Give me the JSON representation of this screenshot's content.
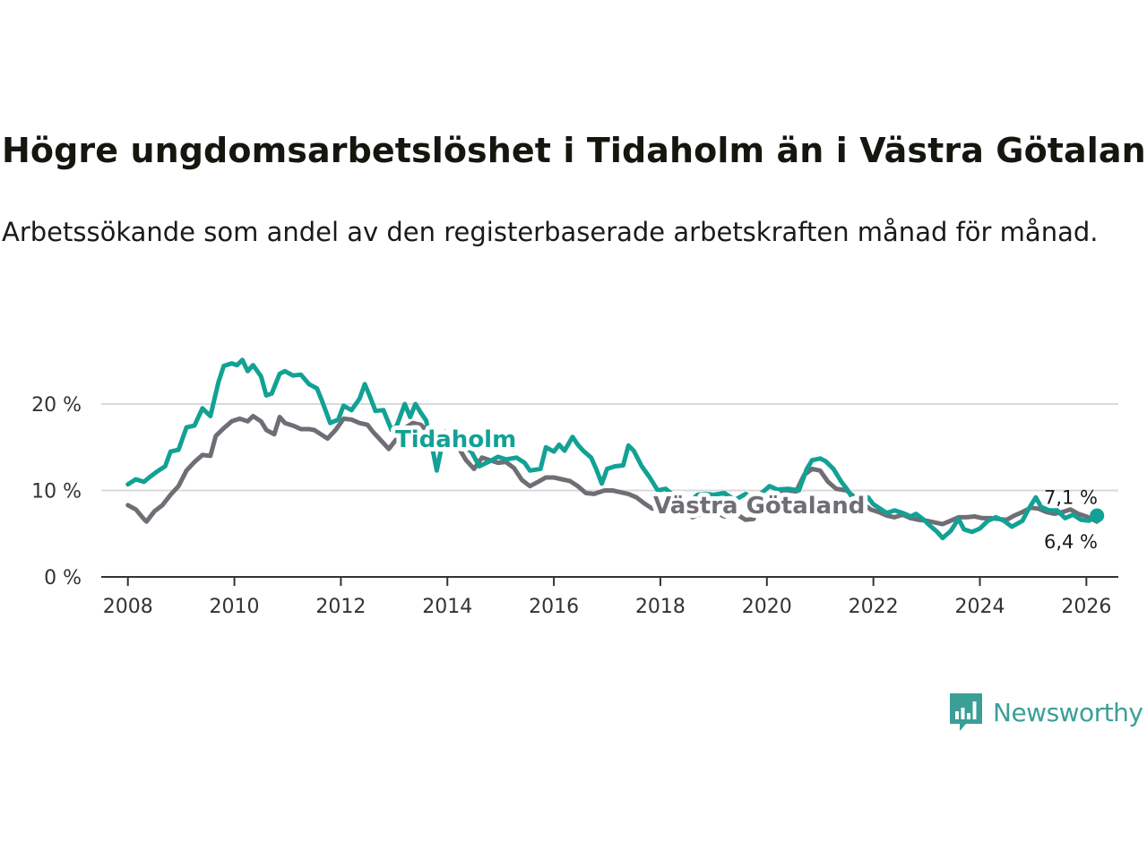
{
  "title": "Högre ungdomsarbetslöshet i Tidaholm än i Västra Götaland",
  "subtitle": "Arbetssökande som andel av den registerbaserade arbetskraften månad för månad.",
  "brand": {
    "name": "Newsworthy",
    "logo_icon": "bar-chart-speech-bubble-icon",
    "color": "#3a9f97"
  },
  "colors": {
    "tidaholm": "#12a195",
    "vastra_gotaland": "#6f6e74",
    "grid": "#d9d9d9",
    "axis": "#333333"
  },
  "chart_data": {
    "type": "line",
    "title": "Högre ungdomsarbetslöshet i Tidaholm än i Västra Götaland",
    "xlabel": "",
    "ylabel": "",
    "x_range": [
      2007.5,
      2026.6
    ],
    "ylim": [
      0,
      20
    ],
    "y_ticks": [
      0,
      10,
      20
    ],
    "y_tick_labels": [
      "0 %",
      "10 %",
      "20 %"
    ],
    "x_ticks": [
      2008,
      2010,
      2012,
      2014,
      2016,
      2018,
      2020,
      2022,
      2024,
      2026
    ],
    "x_tick_labels": [
      "2008",
      "2010",
      "2012",
      "2014",
      "2016",
      "2018",
      "2020",
      "2022",
      "2024",
      "2026"
    ],
    "grid": "horizontal",
    "series": [
      {
        "name": "Tidaholm",
        "label": "Tidaholm",
        "color": "#12a195",
        "end_label": "7,1 %",
        "end_marker": true,
        "points": [
          [
            2008.0,
            10.7
          ],
          [
            2008.15,
            11.3
          ],
          [
            2008.3,
            11.0
          ],
          [
            2008.4,
            11.5
          ],
          [
            2008.55,
            12.2
          ],
          [
            2008.7,
            12.8
          ],
          [
            2008.8,
            14.5
          ],
          [
            2008.95,
            14.7
          ],
          [
            2009.1,
            17.3
          ],
          [
            2009.25,
            17.5
          ],
          [
            2009.4,
            19.5
          ],
          [
            2009.55,
            18.6
          ],
          [
            2009.7,
            22.5
          ],
          [
            2009.8,
            24.4
          ],
          [
            2009.95,
            24.7
          ],
          [
            2010.05,
            24.5
          ],
          [
            2010.15,
            25.1
          ],
          [
            2010.25,
            23.8
          ],
          [
            2010.35,
            24.5
          ],
          [
            2010.5,
            23.2
          ],
          [
            2010.6,
            21.0
          ],
          [
            2010.7,
            21.2
          ],
          [
            2010.85,
            23.5
          ],
          [
            2010.95,
            23.8
          ],
          [
            2011.1,
            23.3
          ],
          [
            2011.25,
            23.4
          ],
          [
            2011.4,
            22.3
          ],
          [
            2011.55,
            21.8
          ],
          [
            2011.65,
            20.3
          ],
          [
            2011.8,
            17.8
          ],
          [
            2011.95,
            18.2
          ],
          [
            2012.05,
            19.8
          ],
          [
            2012.2,
            19.3
          ],
          [
            2012.35,
            20.6
          ],
          [
            2012.45,
            22.3
          ],
          [
            2012.55,
            20.8
          ],
          [
            2012.65,
            19.2
          ],
          [
            2012.8,
            19.3
          ],
          [
            2012.95,
            17.0
          ],
          [
            2013.05,
            17.5
          ],
          [
            2013.2,
            20.0
          ],
          [
            2013.3,
            18.5
          ],
          [
            2013.4,
            20.0
          ],
          [
            2013.5,
            19.0
          ],
          [
            2013.6,
            18.1
          ],
          [
            2013.7,
            15.5
          ],
          [
            2013.8,
            12.3
          ],
          [
            2013.95,
            16.8
          ],
          [
            2014.1,
            16.0
          ],
          [
            2014.25,
            15.3
          ],
          [
            2014.45,
            14.5
          ],
          [
            2014.6,
            12.8
          ],
          [
            2014.8,
            13.4
          ],
          [
            2014.95,
            13.9
          ],
          [
            2015.1,
            13.6
          ],
          [
            2015.3,
            13.8
          ],
          [
            2015.45,
            13.2
          ],
          [
            2015.55,
            12.3
          ],
          [
            2015.75,
            12.5
          ],
          [
            2015.85,
            15.0
          ],
          [
            2016.0,
            14.5
          ],
          [
            2016.1,
            15.3
          ],
          [
            2016.2,
            14.6
          ],
          [
            2016.35,
            16.2
          ],
          [
            2016.45,
            15.3
          ],
          [
            2016.55,
            14.6
          ],
          [
            2016.7,
            13.8
          ],
          [
            2016.8,
            12.4
          ],
          [
            2016.9,
            10.8
          ],
          [
            2017.0,
            12.5
          ],
          [
            2017.15,
            12.8
          ],
          [
            2017.3,
            12.9
          ],
          [
            2017.4,
            15.2
          ],
          [
            2017.5,
            14.6
          ],
          [
            2017.65,
            12.8
          ],
          [
            2017.8,
            11.5
          ],
          [
            2017.95,
            10.0
          ],
          [
            2018.1,
            10.2
          ],
          [
            2018.25,
            9.4
          ],
          [
            2018.4,
            8.8
          ],
          [
            2018.55,
            8.7
          ],
          [
            2018.7,
            9.5
          ],
          [
            2018.85,
            9.6
          ],
          [
            2019.0,
            9.5
          ],
          [
            2019.2,
            9.7
          ],
          [
            2019.4,
            8.9
          ],
          [
            2019.6,
            9.6
          ],
          [
            2019.75,
            9.0
          ],
          [
            2019.9,
            9.7
          ],
          [
            2020.05,
            10.5
          ],
          [
            2020.2,
            10.1
          ],
          [
            2020.4,
            10.2
          ],
          [
            2020.6,
            10.0
          ],
          [
            2020.75,
            12.5
          ],
          [
            2020.85,
            13.5
          ],
          [
            2021.0,
            13.7
          ],
          [
            2021.1,
            13.4
          ],
          [
            2021.25,
            12.5
          ],
          [
            2021.4,
            11.0
          ],
          [
            2021.5,
            10.2
          ],
          [
            2021.6,
            9.2
          ],
          [
            2021.75,
            9.5
          ],
          [
            2021.9,
            9.2
          ],
          [
            2022.0,
            8.4
          ],
          [
            2022.15,
            7.8
          ],
          [
            2022.25,
            7.4
          ],
          [
            2022.4,
            7.7
          ],
          [
            2022.55,
            7.4
          ],
          [
            2022.7,
            7.0
          ],
          [
            2022.8,
            7.3
          ],
          [
            2022.95,
            6.6
          ],
          [
            2023.05,
            6.0
          ],
          [
            2023.2,
            5.2
          ],
          [
            2023.3,
            4.5
          ],
          [
            2023.45,
            5.3
          ],
          [
            2023.6,
            6.7
          ],
          [
            2023.7,
            5.5
          ],
          [
            2023.85,
            5.2
          ],
          [
            2024.0,
            5.6
          ],
          [
            2024.15,
            6.5
          ],
          [
            2024.3,
            6.9
          ],
          [
            2024.45,
            6.5
          ],
          [
            2024.6,
            5.8
          ],
          [
            2024.8,
            6.5
          ],
          [
            2024.9,
            7.7
          ],
          [
            2025.05,
            9.2
          ],
          [
            2025.15,
            8.1
          ],
          [
            2025.3,
            7.7
          ],
          [
            2025.45,
            7.7
          ],
          [
            2025.6,
            6.8
          ],
          [
            2025.75,
            7.2
          ],
          [
            2025.9,
            6.6
          ],
          [
            2026.05,
            6.5
          ],
          [
            2026.2,
            7.1
          ]
        ]
      },
      {
        "name": "Västra Götaland",
        "label": "Västra Götaland",
        "color": "#6f6e74",
        "end_label": "6,4 %",
        "end_marker": false,
        "points": [
          [
            2008.0,
            8.3
          ],
          [
            2008.15,
            7.8
          ],
          [
            2008.3,
            6.7
          ],
          [
            2008.35,
            6.4
          ],
          [
            2008.5,
            7.6
          ],
          [
            2008.65,
            8.3
          ],
          [
            2008.8,
            9.5
          ],
          [
            2008.95,
            10.5
          ],
          [
            2009.1,
            12.3
          ],
          [
            2009.25,
            13.3
          ],
          [
            2009.4,
            14.1
          ],
          [
            2009.55,
            14.0
          ],
          [
            2009.65,
            16.3
          ],
          [
            2009.8,
            17.2
          ],
          [
            2009.95,
            18.0
          ],
          [
            2010.1,
            18.3
          ],
          [
            2010.25,
            18.0
          ],
          [
            2010.35,
            18.6
          ],
          [
            2010.5,
            18.0
          ],
          [
            2010.6,
            17.0
          ],
          [
            2010.75,
            16.5
          ],
          [
            2010.85,
            18.5
          ],
          [
            2010.95,
            17.8
          ],
          [
            2011.1,
            17.5
          ],
          [
            2011.25,
            17.1
          ],
          [
            2011.4,
            17.1
          ],
          [
            2011.5,
            17.0
          ],
          [
            2011.6,
            16.6
          ],
          [
            2011.75,
            16.0
          ],
          [
            2011.9,
            17.0
          ],
          [
            2012.05,
            18.3
          ],
          [
            2012.2,
            18.2
          ],
          [
            2012.35,
            17.8
          ],
          [
            2012.5,
            17.6
          ],
          [
            2012.6,
            16.8
          ],
          [
            2012.75,
            15.8
          ],
          [
            2012.9,
            14.8
          ],
          [
            2013.05,
            16.0
          ],
          [
            2013.2,
            17.2
          ],
          [
            2013.35,
            17.8
          ],
          [
            2013.5,
            17.6
          ],
          [
            2013.65,
            16.7
          ],
          [
            2013.8,
            15.5
          ],
          [
            2013.95,
            16.0
          ],
          [
            2014.15,
            15.6
          ],
          [
            2014.35,
            13.5
          ],
          [
            2014.5,
            12.5
          ],
          [
            2014.65,
            13.8
          ],
          [
            2014.8,
            13.5
          ],
          [
            2014.95,
            13.2
          ],
          [
            2015.1,
            13.3
          ],
          [
            2015.25,
            12.6
          ],
          [
            2015.4,
            11.2
          ],
          [
            2015.55,
            10.5
          ],
          [
            2015.7,
            11.0
          ],
          [
            2015.85,
            11.5
          ],
          [
            2016.0,
            11.5
          ],
          [
            2016.15,
            11.3
          ],
          [
            2016.3,
            11.1
          ],
          [
            2016.45,
            10.5
          ],
          [
            2016.6,
            9.7
          ],
          [
            2016.75,
            9.6
          ],
          [
            2016.95,
            10.0
          ],
          [
            2017.1,
            10.0
          ],
          [
            2017.25,
            9.8
          ],
          [
            2017.4,
            9.6
          ],
          [
            2017.55,
            9.2
          ],
          [
            2017.7,
            8.5
          ],
          [
            2017.85,
            7.9
          ],
          [
            2018.0,
            8.1
          ],
          [
            2018.15,
            8.5
          ],
          [
            2018.3,
            8.3
          ],
          [
            2018.45,
            7.8
          ],
          [
            2018.6,
            6.9
          ],
          [
            2018.75,
            7.3
          ],
          [
            2018.9,
            7.5
          ],
          [
            2019.05,
            7.4
          ],
          [
            2019.2,
            7.0
          ],
          [
            2019.35,
            7.5
          ],
          [
            2019.5,
            7.0
          ],
          [
            2019.6,
            6.6
          ],
          [
            2019.75,
            6.7
          ],
          [
            2019.9,
            8.7
          ],
          [
            2020.05,
            9.4
          ],
          [
            2020.2,
            9.8
          ],
          [
            2020.4,
            10.0
          ],
          [
            2020.55,
            9.9
          ],
          [
            2020.7,
            11.8
          ],
          [
            2020.85,
            12.5
          ],
          [
            2021.0,
            12.3
          ],
          [
            2021.15,
            11.0
          ],
          [
            2021.3,
            10.2
          ],
          [
            2021.5,
            10.0
          ],
          [
            2021.65,
            9.2
          ],
          [
            2021.8,
            8.5
          ],
          [
            2021.95,
            7.8
          ],
          [
            2022.1,
            7.5
          ],
          [
            2022.25,
            7.1
          ],
          [
            2022.4,
            6.9
          ],
          [
            2022.55,
            7.2
          ],
          [
            2022.7,
            6.8
          ],
          [
            2022.85,
            6.6
          ],
          [
            2023.0,
            6.5
          ],
          [
            2023.15,
            6.3
          ],
          [
            2023.3,
            6.1
          ],
          [
            2023.45,
            6.5
          ],
          [
            2023.6,
            6.9
          ],
          [
            2023.75,
            6.9
          ],
          [
            2023.9,
            7.0
          ],
          [
            2024.05,
            6.8
          ],
          [
            2024.2,
            6.8
          ],
          [
            2024.35,
            6.7
          ],
          [
            2024.5,
            6.6
          ],
          [
            2024.65,
            7.1
          ],
          [
            2024.8,
            7.5
          ],
          [
            2024.95,
            8.0
          ],
          [
            2025.1,
            7.9
          ],
          [
            2025.25,
            7.5
          ],
          [
            2025.4,
            7.3
          ],
          [
            2025.55,
            7.5
          ],
          [
            2025.7,
            7.8
          ],
          [
            2025.85,
            7.3
          ],
          [
            2026.0,
            7.0
          ],
          [
            2026.1,
            6.7
          ],
          [
            2026.2,
            6.4
          ]
        ]
      }
    ]
  }
}
